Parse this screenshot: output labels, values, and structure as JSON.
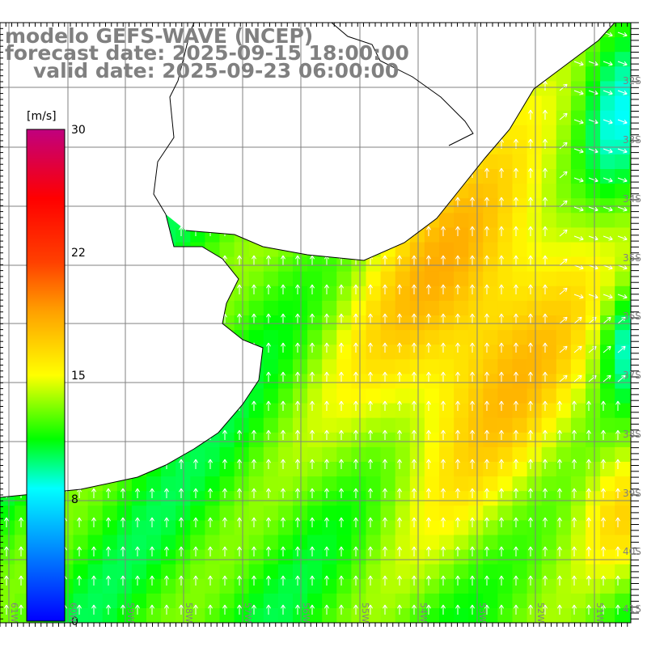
{
  "title": {
    "line1": "modelo GEFS-WAVE (NCEP)",
    "line2": "forecast date: 2025-09-15 18:00:00",
    "line3": "valid date: 2025-09-23 06:00:00"
  },
  "colorbar": {
    "unit": "[m/s]",
    "ticks": [
      "30",
      "22",
      "15",
      "8",
      "0"
    ],
    "min": 0,
    "max": 30
  },
  "axes": {
    "lon_labels": [
      "61W",
      "60W",
      "59W",
      "58W",
      "57W",
      "56W",
      "55W",
      "54W",
      "53W",
      "52W",
      "51W"
    ],
    "lat_labels": [
      "32S",
      "33S",
      "34S",
      "35S",
      "36S",
      "37S",
      "38S",
      "39S",
      "40S",
      "41S"
    ]
  },
  "colors": {
    "land": "#ffffff",
    "grid": "#808080",
    "coastline": "#000000",
    "title": "#808080"
  }
}
